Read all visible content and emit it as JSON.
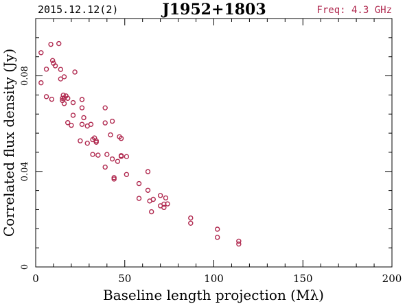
{
  "chart_data": {
    "type": "scatter",
    "title": "J1952+1803",
    "date_label": "2015.12.12(2)",
    "freq_label": "Freq: 4.3 GHz",
    "xlabel": "Baseline length projection (Mλ)",
    "ylabel": "Correlated flux density (Jy)",
    "xlim": [
      0,
      200
    ],
    "ylim": [
      0,
      0.104
    ],
    "xticks": [
      0,
      50,
      100,
      150,
      200
    ],
    "xtick_labels": [
      "0",
      "50",
      "100",
      "150",
      "200"
    ],
    "yticks": [
      0,
      0.04,
      0.08
    ],
    "ytick_labels": [
      "0",
      "0.04",
      "0.08"
    ],
    "grid": false,
    "marker_color": "#b0294f",
    "points": [
      [
        3,
        0.0897
      ],
      [
        3,
        0.0771
      ],
      [
        6,
        0.0828
      ],
      [
        6,
        0.0713
      ],
      [
        8.5,
        0.0932
      ],
      [
        9,
        0.0702
      ],
      [
        9.5,
        0.0864
      ],
      [
        10,
        0.0853
      ],
      [
        11,
        0.0842
      ],
      [
        13,
        0.0935
      ],
      [
        14,
        0.0827
      ],
      [
        14,
        0.0787
      ],
      [
        15,
        0.0706
      ],
      [
        15,
        0.0697
      ],
      [
        15.5,
        0.0719
      ],
      [
        16,
        0.0706
      ],
      [
        16,
        0.0684
      ],
      [
        16,
        0.0796
      ],
      [
        17,
        0.0716
      ],
      [
        18,
        0.0706
      ],
      [
        18,
        0.0604
      ],
      [
        20,
        0.0593
      ],
      [
        21,
        0.0688
      ],
      [
        21,
        0.0635
      ],
      [
        22,
        0.0816
      ],
      [
        25,
        0.0528
      ],
      [
        26,
        0.0597
      ],
      [
        26,
        0.0701
      ],
      [
        26,
        0.0666
      ],
      [
        27,
        0.0625
      ],
      [
        29,
        0.0518
      ],
      [
        29,
        0.059
      ],
      [
        31,
        0.0597
      ],
      [
        32,
        0.0533
      ],
      [
        32,
        0.0471
      ],
      [
        33,
        0.054
      ],
      [
        34,
        0.0528
      ],
      [
        34,
        0.0522
      ],
      [
        35,
        0.0468
      ],
      [
        39,
        0.0603
      ],
      [
        39,
        0.0666
      ],
      [
        39,
        0.0418
      ],
      [
        40,
        0.0471
      ],
      [
        42,
        0.0553
      ],
      [
        43,
        0.061
      ],
      [
        43,
        0.0452
      ],
      [
        44,
        0.0374
      ],
      [
        44,
        0.0368
      ],
      [
        46,
        0.0442
      ],
      [
        47,
        0.0545
      ],
      [
        48,
        0.0538
      ],
      [
        48,
        0.0466
      ],
      [
        48,
        0.0463
      ],
      [
        51,
        0.0462
      ],
      [
        51,
        0.0387
      ],
      [
        58,
        0.0349
      ],
      [
        58,
        0.0287
      ],
      [
        63,
        0.0399
      ],
      [
        63,
        0.0321
      ],
      [
        64,
        0.0276
      ],
      [
        65,
        0.0231
      ],
      [
        66,
        0.0283
      ],
      [
        70,
        0.0299
      ],
      [
        70,
        0.0256
      ],
      [
        72,
        0.0249
      ],
      [
        72,
        0.0263
      ],
      [
        73,
        0.0289
      ],
      [
        74,
        0.0264
      ],
      [
        87,
        0.0205
      ],
      [
        87,
        0.0183
      ],
      [
        102,
        0.0158
      ],
      [
        102,
        0.0124
      ],
      [
        114,
        0.0108
      ],
      [
        114,
        0.0096
      ]
    ]
  }
}
